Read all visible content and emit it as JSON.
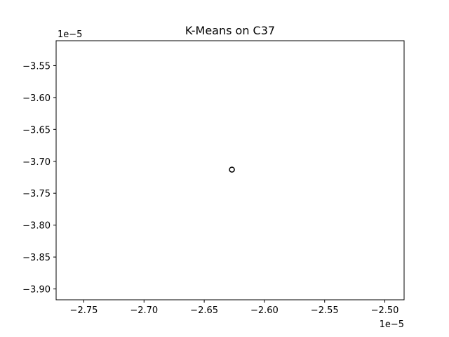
{
  "chart_data": {
    "type": "scatter",
    "title": "K-Means on C37",
    "xlabel": "",
    "ylabel": "",
    "x_offset_label": "1e−5",
    "y_offset_label": "1e−5",
    "xlim": [
      -2.773,
      -2.484
    ],
    "ylim": [
      -3.917,
      -3.511
    ],
    "x_ticks": [
      -2.75,
      -2.7,
      -2.65,
      -2.6,
      -2.55,
      -2.5
    ],
    "x_tick_labels": [
      "−2.75",
      "−2.70",
      "−2.65",
      "−2.60",
      "−2.55",
      "−2.50"
    ],
    "y_ticks": [
      -3.55,
      -3.6,
      -3.65,
      -3.7,
      -3.75,
      -3.8,
      -3.85,
      -3.9
    ],
    "y_tick_labels": [
      "−3.55",
      "−3.60",
      "−3.65",
      "−3.70",
      "−3.75",
      "−3.80",
      "−3.85",
      "−3.90"
    ],
    "grid": false,
    "points": [
      {
        "x": -2.627,
        "y": -3.713,
        "marker": "hollow-circle"
      }
    ]
  }
}
